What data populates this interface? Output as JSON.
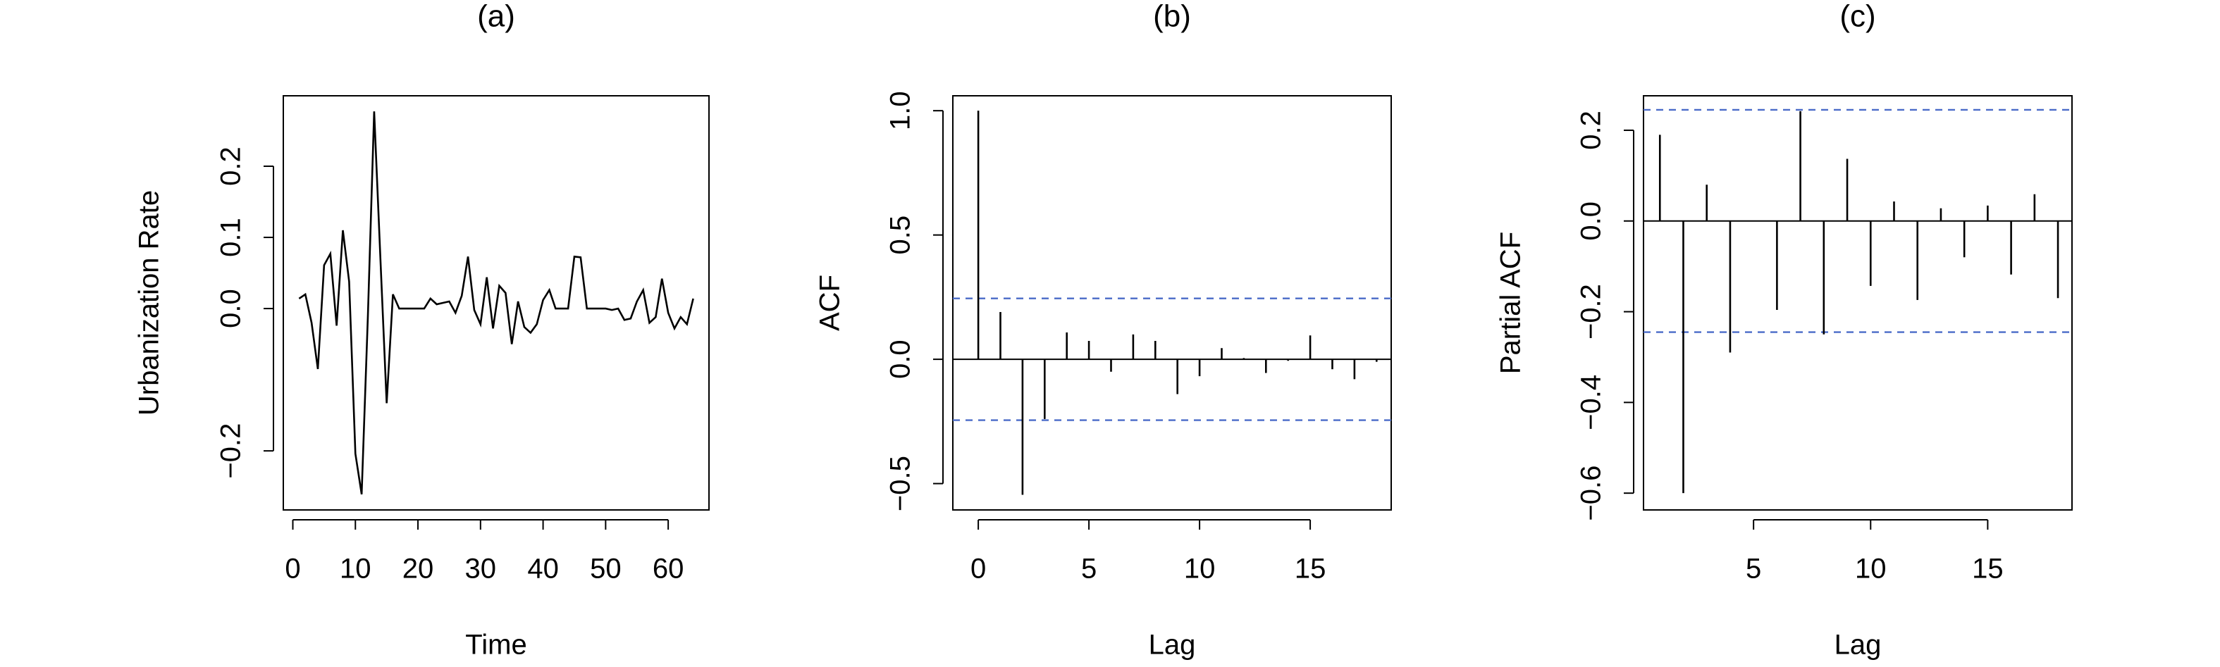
{
  "chart_data": [
    {
      "type": "line",
      "title": "(a)",
      "x_label": "Time",
      "y_label": "Urbanization Rate",
      "color": "#000000",
      "x": [
        1,
        2,
        3,
        4,
        5,
        6,
        7,
        8,
        9,
        10,
        11,
        12,
        13,
        14,
        15,
        16,
        17,
        18,
        19,
        20,
        21,
        22,
        23,
        24,
        25,
        26,
        27,
        28,
        29,
        30,
        31,
        32,
        33,
        34,
        35,
        36,
        37,
        38,
        39,
        40,
        41,
        42,
        43,
        44,
        45,
        46,
        47,
        48,
        49,
        50,
        51,
        52,
        53,
        54,
        55,
        56,
        57,
        58,
        59,
        60,
        61,
        62,
        63,
        64
      ],
      "values": [
        0.014,
        0.02,
        -0.02,
        -0.085,
        0.061,
        0.077,
        -0.024,
        0.11,
        0.038,
        -0.204,
        -0.261,
        -0.01,
        0.277,
        0.07,
        -0.133,
        0.02,
        0.0,
        0.0,
        0.0,
        0.0,
        0.0,
        0.014,
        0.006,
        0.008,
        0.01,
        -0.006,
        0.018,
        0.073,
        -0.002,
        -0.022,
        0.044,
        -0.028,
        0.032,
        0.022,
        -0.05,
        0.01,
        -0.026,
        -0.034,
        -0.022,
        0.012,
        0.026,
        0.0,
        0.0,
        0.0,
        0.073,
        0.072,
        0.0,
        0.0,
        0.0,
        0.0,
        -0.002,
        0.0,
        -0.016,
        -0.014,
        0.01,
        0.026,
        -0.02,
        -0.012,
        0.042,
        -0.006,
        -0.028,
        -0.012,
        -0.022,
        0.014
      ],
      "xlim": [
        -1.52,
        66.52
      ],
      "xticks": [
        0,
        10,
        20,
        30,
        40,
        50,
        60
      ],
      "ylim": [
        -0.283,
        0.299
      ],
      "yticks": [
        {
          "value": -0.2,
          "label": "−0.2"
        },
        {
          "value": 0,
          "label": "0.0"
        },
        0.1,
        0.2
      ]
    },
    {
      "type": "stem",
      "title": "(b)",
      "x_label": "Lag",
      "y_label": "ACF",
      "color": "#000000",
      "x": [
        0,
        1,
        2,
        3,
        4,
        5,
        6,
        7,
        8,
        9,
        10,
        11,
        12,
        13,
        14,
        15,
        16,
        17,
        18
      ],
      "values": [
        1.0,
        0.19,
        -0.545,
        -0.24,
        0.108,
        0.074,
        -0.05,
        0.1,
        0.074,
        -0.14,
        -0.068,
        0.045,
        0.005,
        -0.055,
        -0.006,
        0.096,
        -0.04,
        -0.08,
        -0.01
      ],
      "ci_bounds": [
        0.245,
        -0.245
      ],
      "ci_color": "#4a6bc8",
      "xlim": [
        -1.15,
        18.66
      ],
      "xticks": [
        0,
        5,
        10,
        15
      ],
      "ylim": [
        -0.606,
        1.06
      ],
      "yticks": [
        {
          "value": -0.5,
          "label": "−0.5"
        },
        {
          "value": 0,
          "label": "0.0"
        },
        0.5,
        {
          "value": 1,
          "label": "1.0"
        }
      ]
    },
    {
      "type": "stem",
      "title": "(c)",
      "x_label": "Lag",
      "y_label": "Partial ACF",
      "color": "#000000",
      "x": [
        1,
        2,
        3,
        4,
        5,
        6,
        7,
        8,
        9,
        10,
        11,
        12,
        13,
        14,
        15,
        16,
        17,
        18
      ],
      "values": [
        0.19,
        -0.6,
        0.08,
        -0.29,
        0.0,
        -0.196,
        0.242,
        -0.25,
        0.137,
        -0.143,
        0.043,
        -0.174,
        0.028,
        -0.08,
        0.034,
        -0.118,
        0.059,
        -0.17
      ],
      "ci_bounds": [
        0.245,
        -0.245
      ],
      "ci_color": "#4a6bc8",
      "xlim": [
        0.3,
        18.6
      ],
      "xticks": [
        5,
        10,
        15
      ],
      "ylim": [
        -0.637,
        0.276
      ],
      "yticks": [
        {
          "value": -0.6,
          "label": "−0.6"
        },
        {
          "value": -0.4,
          "label": "−0.4"
        },
        {
          "value": -0.2,
          "label": "−0.2"
        },
        {
          "value": 0,
          "label": "0.0"
        },
        0.2
      ]
    }
  ]
}
